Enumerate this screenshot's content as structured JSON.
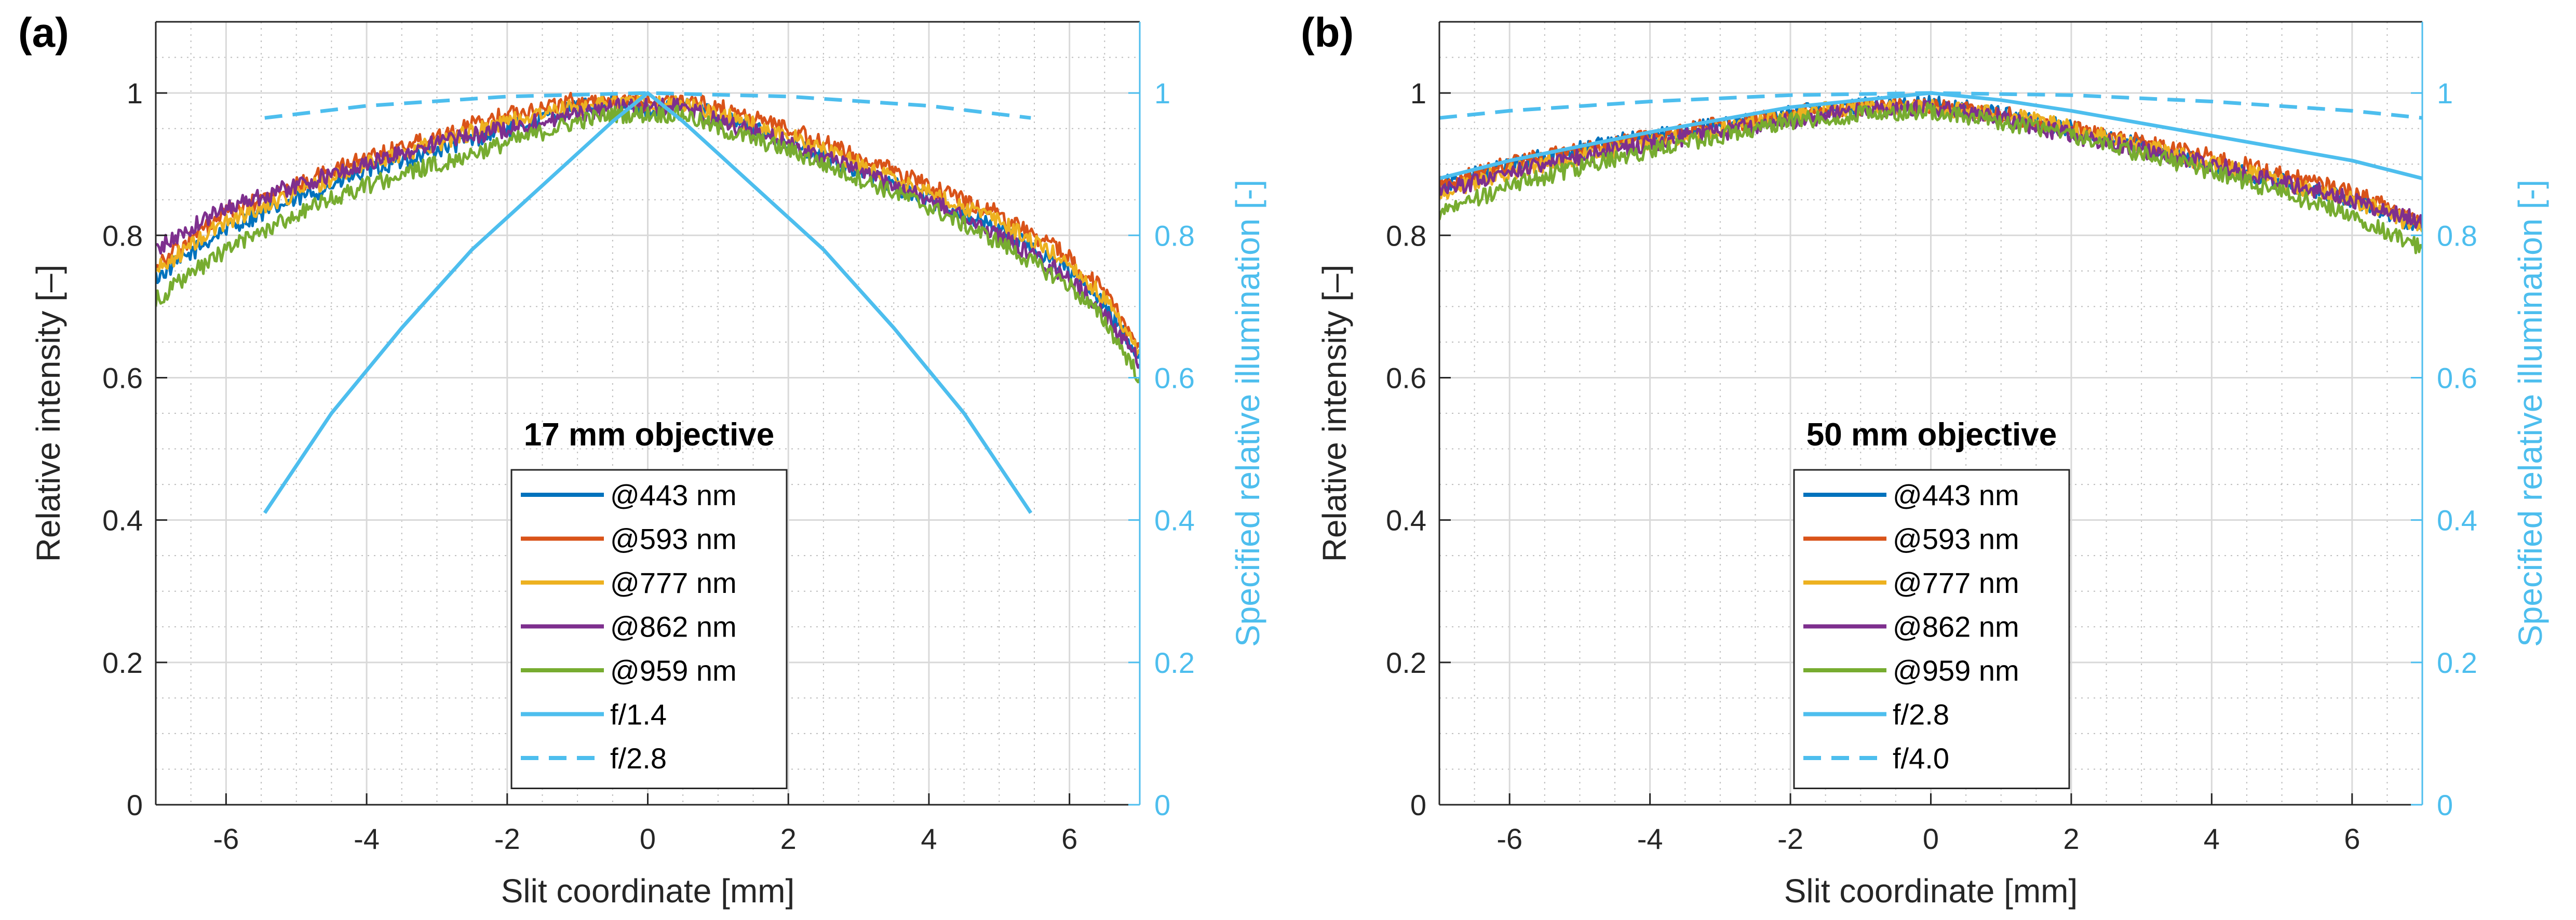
{
  "colors": {
    "c443": "#0072BD",
    "c593": "#D95319",
    "c777": "#EDB120",
    "c862": "#7E2F8E",
    "c959": "#77AC30",
    "spec": "#4DBEEE",
    "axis": "#262626",
    "grid": "#d9d9d9",
    "minorgrid": "#bdbdbd"
  },
  "chart_data": [
    {
      "panel_label": "(a)",
      "type": "line",
      "annotation": "17 mm objective",
      "xlabel": "Slit coordinate [mm]",
      "ylabel": "Relative intensity [–]",
      "y2label": "Specified relative illumination [-]",
      "xlim": [
        -7,
        7
      ],
      "ylim": [
        0,
        1.1
      ],
      "y2lim": [
        0,
        1.1
      ],
      "grid": true,
      "xticks": [
        "-6",
        "-4",
        "-2",
        "0",
        "2",
        "4",
        "6"
      ],
      "yticks": [
        "0",
        "0.2",
        "0.4",
        "0.6",
        "0.8",
        "1"
      ],
      "y2ticks": [
        "0",
        "0.2",
        "0.4",
        "0.6",
        "0.8",
        "1"
      ],
      "legend_location": "bottom-center",
      "series": [
        {
          "name": "@443 nm",
          "color_key": "c443",
          "style": "solid",
          "axis": "left",
          "noisy": true,
          "x": [
            -7,
            -6,
            -5,
            -4,
            -3,
            -2,
            -1,
            -0.5,
            0,
            0.5,
            1,
            2,
            3,
            4,
            5,
            6,
            6.5,
            7
          ],
          "y": [
            0.74,
            0.81,
            0.85,
            0.89,
            0.92,
            0.95,
            0.98,
            0.985,
            0.975,
            0.985,
            0.97,
            0.93,
            0.89,
            0.85,
            0.81,
            0.75,
            0.7,
            0.63
          ]
        },
        {
          "name": "@593 nm",
          "color_key": "c593",
          "style": "solid",
          "axis": "left",
          "noisy": true,
          "x": [
            -7,
            -6,
            -5,
            -4,
            -3,
            -2,
            -1,
            -0.5,
            0,
            0.5,
            1,
            2,
            3,
            4,
            5,
            6,
            6.5,
            7
          ],
          "y": [
            0.76,
            0.83,
            0.87,
            0.91,
            0.94,
            0.97,
            0.99,
            0.99,
            0.985,
            0.99,
            0.98,
            0.95,
            0.91,
            0.87,
            0.83,
            0.77,
            0.72,
            0.64
          ]
        },
        {
          "name": "@777 nm",
          "color_key": "c777",
          "style": "solid",
          "axis": "left",
          "noisy": true,
          "x": [
            -7,
            -6,
            -5,
            -4,
            -3,
            -2,
            -1,
            -0.5,
            0,
            0.5,
            1,
            2,
            3,
            4,
            5,
            6,
            6.5,
            7
          ],
          "y": [
            0.75,
            0.82,
            0.86,
            0.9,
            0.93,
            0.96,
            0.98,
            0.99,
            0.985,
            0.985,
            0.97,
            0.94,
            0.9,
            0.86,
            0.82,
            0.76,
            0.71,
            0.63
          ]
        },
        {
          "name": "@862 nm",
          "color_key": "c862",
          "style": "solid",
          "axis": "left",
          "noisy": true,
          "x": [
            -7,
            -6,
            -5,
            -4,
            -3,
            -2,
            -1,
            -0.5,
            0,
            0.5,
            1,
            2,
            3,
            4,
            5,
            6,
            6.5,
            7
          ],
          "y": [
            0.78,
            0.84,
            0.87,
            0.9,
            0.93,
            0.95,
            0.97,
            0.98,
            0.98,
            0.98,
            0.96,
            0.93,
            0.89,
            0.85,
            0.8,
            0.74,
            0.69,
            0.62
          ]
        },
        {
          "name": "@959 nm",
          "color_key": "c959",
          "style": "solid",
          "axis": "left",
          "noisy": true,
          "x": [
            -7,
            -6,
            -5,
            -4,
            -3,
            -2,
            -1,
            -0.5,
            0,
            0.5,
            1,
            2,
            3,
            4,
            5,
            6,
            6.5,
            7
          ],
          "y": [
            0.71,
            0.78,
            0.83,
            0.87,
            0.9,
            0.93,
            0.96,
            0.97,
            0.97,
            0.97,
            0.95,
            0.92,
            0.88,
            0.84,
            0.79,
            0.73,
            0.68,
            0.6
          ]
        },
        {
          "name": "f/1.4",
          "color_key": "spec",
          "style": "solid",
          "axis": "right",
          "noisy": false,
          "x": [
            -5.45,
            -4.5,
            -3.5,
            -2.5,
            -1.5,
            -0.5,
            0,
            0.5,
            1.5,
            2.5,
            3.5,
            4.5,
            5.45
          ],
          "y": [
            0.41,
            0.55,
            0.67,
            0.78,
            0.87,
            0.96,
            1.0,
            0.96,
            0.87,
            0.78,
            0.67,
            0.55,
            0.41
          ]
        },
        {
          "name": "f/2.8",
          "color_key": "spec",
          "style": "dashed",
          "axis": "right",
          "noisy": false,
          "x": [
            -5.45,
            -4,
            -2,
            0,
            2,
            4,
            5.45
          ],
          "y": [
            0.965,
            0.982,
            0.995,
            1.0,
            0.995,
            0.982,
            0.965
          ]
        }
      ]
    },
    {
      "panel_label": "(b)",
      "type": "line",
      "annotation": "50 mm objective",
      "xlabel": "Slit coordinate [mm]",
      "ylabel": "Relative intensity [–]",
      "y2label": "Specified relative illumination [-]",
      "xlim": [
        -7,
        7
      ],
      "ylim": [
        0,
        1.1
      ],
      "y2lim": [
        0,
        1.1
      ],
      "grid": true,
      "xticks": [
        "-6",
        "-4",
        "-2",
        "0",
        "2",
        "4",
        "6"
      ],
      "yticks": [
        "0",
        "0.2",
        "0.4",
        "0.6",
        "0.8",
        "1"
      ],
      "y2ticks": [
        "0",
        "0.2",
        "0.4",
        "0.6",
        "0.8",
        "1"
      ],
      "legend_location": "bottom-center",
      "series": [
        {
          "name": "@443 nm",
          "color_key": "c443",
          "style": "solid",
          "axis": "left",
          "noisy": true,
          "x": [
            -7,
            -6,
            -4,
            -2,
            -1,
            0,
            1,
            2,
            4,
            6,
            7
          ],
          "y": [
            0.87,
            0.9,
            0.94,
            0.97,
            0.985,
            0.985,
            0.97,
            0.95,
            0.9,
            0.85,
            0.81
          ]
        },
        {
          "name": "@593 nm",
          "color_key": "c593",
          "style": "solid",
          "axis": "left",
          "noisy": true,
          "x": [
            -7,
            -6,
            -4,
            -2,
            -1,
            0,
            1,
            2,
            4,
            6,
            7
          ],
          "y": [
            0.87,
            0.9,
            0.94,
            0.97,
            0.98,
            0.98,
            0.97,
            0.95,
            0.91,
            0.86,
            0.82
          ]
        },
        {
          "name": "@777 nm",
          "color_key": "c777",
          "style": "solid",
          "axis": "left",
          "noisy": true,
          "x": [
            -7,
            -6,
            -4,
            -2,
            -1,
            0,
            1,
            2,
            4,
            6,
            7
          ],
          "y": [
            0.86,
            0.89,
            0.93,
            0.97,
            0.98,
            0.98,
            0.97,
            0.95,
            0.9,
            0.85,
            0.81
          ]
        },
        {
          "name": "@862 nm",
          "color_key": "c862",
          "style": "solid",
          "axis": "left",
          "noisy": true,
          "x": [
            -7,
            -6,
            -4,
            -2,
            -1,
            0,
            1,
            2,
            4,
            6,
            7
          ],
          "y": [
            0.86,
            0.89,
            0.93,
            0.96,
            0.975,
            0.98,
            0.965,
            0.94,
            0.9,
            0.85,
            0.82
          ]
        },
        {
          "name": "@959 nm",
          "color_key": "c959",
          "style": "solid",
          "axis": "left",
          "noisy": true,
          "x": [
            -7,
            -6,
            -4,
            -2,
            -1,
            0,
            1,
            2,
            4,
            6,
            7
          ],
          "y": [
            0.83,
            0.87,
            0.92,
            0.96,
            0.97,
            0.975,
            0.96,
            0.94,
            0.89,
            0.83,
            0.78
          ]
        },
        {
          "name": "f/2.8",
          "color_key": "spec",
          "style": "solid",
          "axis": "right",
          "noisy": false,
          "x": [
            -7,
            -6,
            -4,
            -2,
            -1,
            0,
            1,
            2,
            4,
            6,
            7
          ],
          "y": [
            0.88,
            0.905,
            0.945,
            0.98,
            0.99,
            1.0,
            0.99,
            0.975,
            0.94,
            0.905,
            0.88
          ]
        },
        {
          "name": "f/4.0",
          "color_key": "spec",
          "style": "dashed",
          "axis": "right",
          "noisy": false,
          "x": [
            -7,
            -6,
            -4,
            -2,
            0,
            2,
            4,
            6,
            7
          ],
          "y": [
            0.965,
            0.975,
            0.988,
            0.997,
            1.0,
            0.997,
            0.988,
            0.975,
            0.965
          ]
        }
      ]
    }
  ]
}
